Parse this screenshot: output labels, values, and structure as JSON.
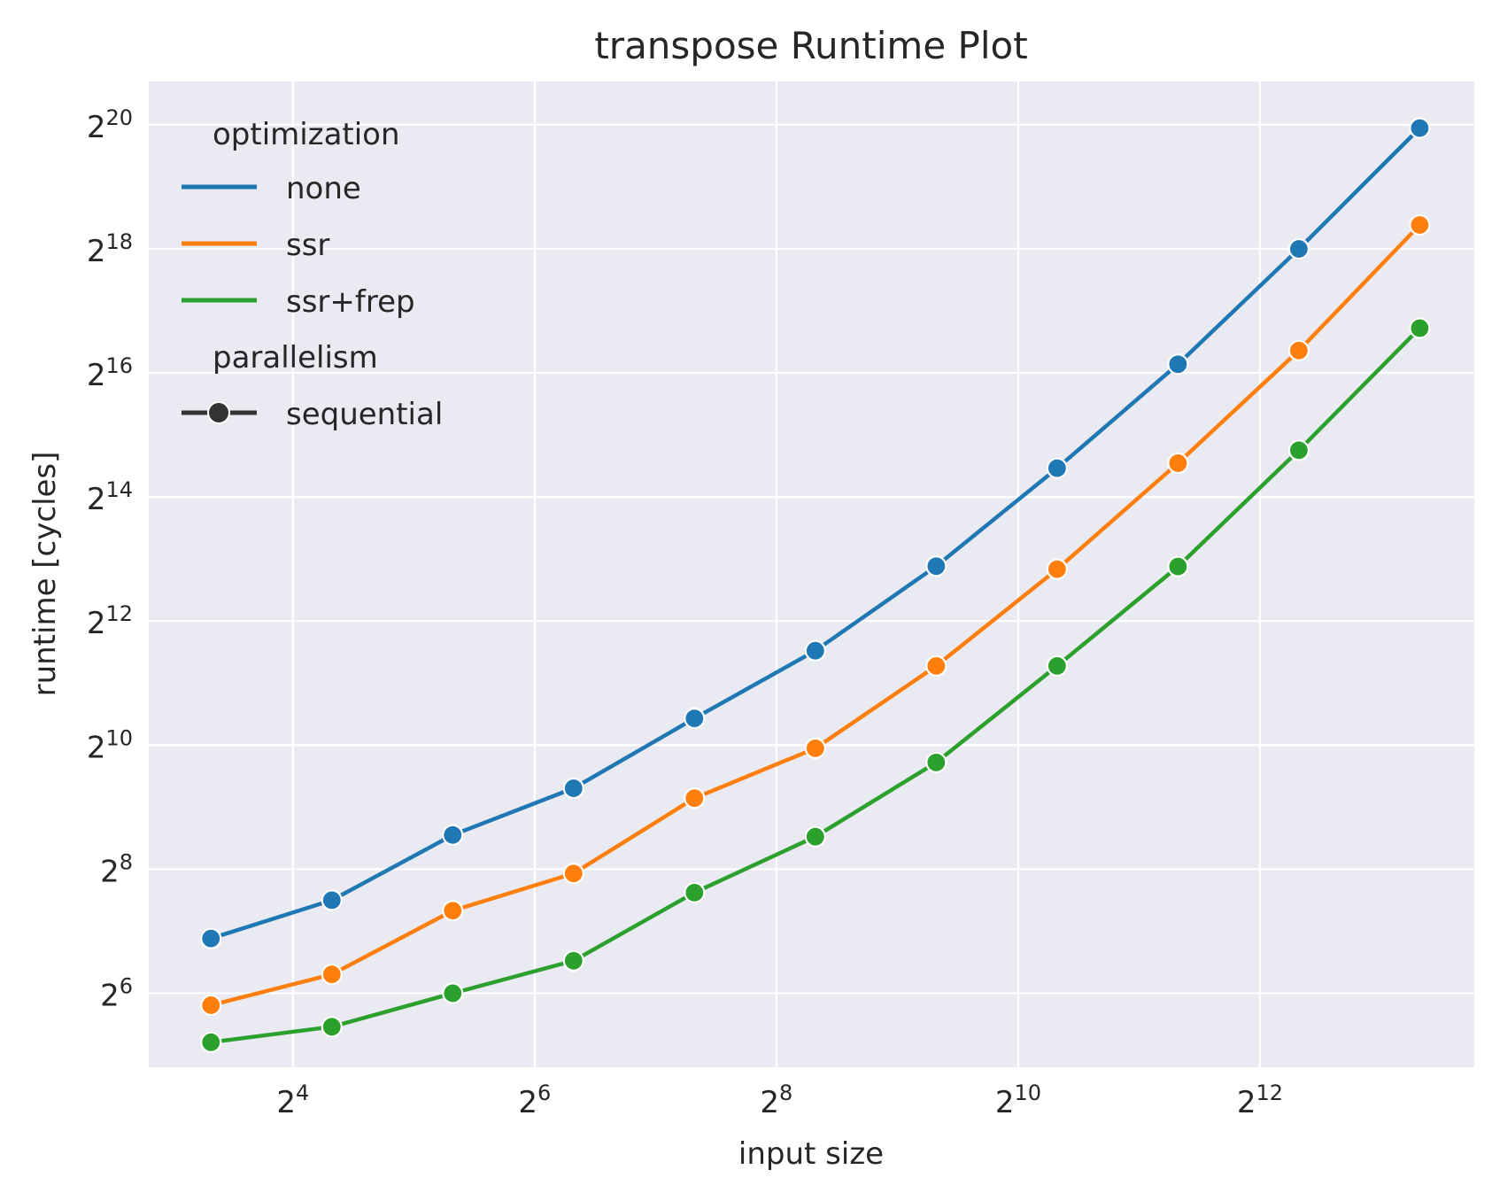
{
  "chart_data": {
    "type": "line",
    "title": "transpose Runtime Plot",
    "xlabel": "input size",
    "ylabel": "runtime [cycles]",
    "xscale": "log2",
    "yscale": "log2",
    "xlim": [
      7,
      14000
    ],
    "ylim": [
      28,
      1700000
    ],
    "grid": true,
    "x": [
      10,
      20,
      40,
      80,
      160,
      320,
      640,
      1280,
      2560,
      5120,
      10240
    ],
    "x_ticks": [
      {
        "base": "2",
        "exp": "4",
        "value": 16
      },
      {
        "base": "2",
        "exp": "6",
        "value": 64
      },
      {
        "base": "2",
        "exp": "8",
        "value": 256
      },
      {
        "base": "2",
        "exp": "10",
        "value": 1024
      },
      {
        "base": "2",
        "exp": "12",
        "value": 4096
      }
    ],
    "y_ticks": [
      {
        "base": "2",
        "exp": "6",
        "value": 64
      },
      {
        "base": "2",
        "exp": "8",
        "value": 256
      },
      {
        "base": "2",
        "exp": "10",
        "value": 1024
      },
      {
        "base": "2",
        "exp": "12",
        "value": 4096
      },
      {
        "base": "2",
        "exp": "14",
        "value": 16384
      },
      {
        "base": "2",
        "exp": "16",
        "value": 65536
      },
      {
        "base": "2",
        "exp": "18",
        "value": 262144
      },
      {
        "base": "2",
        "exp": "20",
        "value": 1048576
      }
    ],
    "series": [
      {
        "name": "none",
        "color": "#1f77b4",
        "values": [
          118,
          181,
          375,
          632,
          1380,
          2940,
          7560,
          22600,
          72200,
          262000,
          1010000
        ]
      },
      {
        "name": "ssr",
        "color": "#ff7f0e",
        "values": [
          56,
          79,
          161,
          244,
          566,
          988,
          2480,
          7310,
          23900,
          84100,
          342000
        ]
      },
      {
        "name": "ssr+frep",
        "color": "#2ca02c",
        "values": [
          37,
          44,
          64,
          92,
          197,
          368,
          843,
          2480,
          7530,
          27600,
          108000
        ]
      }
    ],
    "legend": {
      "position": "top-left",
      "group1_title": "optimization",
      "group2_title": "parallelism",
      "group2_entry": "sequential"
    },
    "colors": {
      "background": "#eaeaf2",
      "grid": "#ffffff",
      "text": "#262626",
      "marker_edge": "#ffffff",
      "style_entry": "#333333"
    }
  }
}
